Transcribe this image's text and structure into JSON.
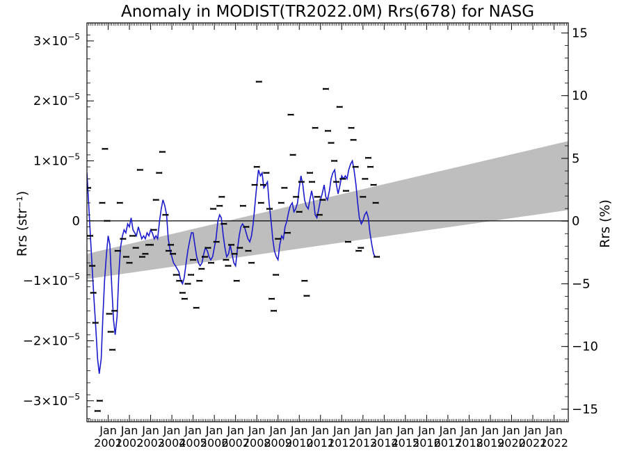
{
  "chart_data": {
    "type": "line",
    "title": "Anomaly in MODIST(TR2022.0M) Rrs(678) for NASG",
    "ylabel": "Rrs (str⁻¹)",
    "y2label": "Rrs (%)",
    "xlabel": "",
    "xlim": [
      2000.0,
      2022.67
    ],
    "ylim": [
      -3.35e-05,
      3.3e-05
    ],
    "y2lim": [
      -16.0,
      15.8
    ],
    "grid": false,
    "yticks": [
      {
        "value": 3e-05,
        "mantissa": "3",
        "exp": "−5"
      },
      {
        "value": 2e-05,
        "mantissa": "2",
        "exp": "−5"
      },
      {
        "value": 1e-05,
        "mantissa": "1",
        "exp": "−5"
      },
      {
        "value": 0,
        "label": "0"
      },
      {
        "value": -1e-05,
        "mantissa": "−1",
        "exp": "−5"
      },
      {
        "value": -2e-05,
        "mantissa": "−2",
        "exp": "−5"
      },
      {
        "value": -3e-05,
        "mantissa": "−3",
        "exp": "−5"
      }
    ],
    "y2ticks": [
      {
        "value": 15,
        "label": "15"
      },
      {
        "value": 10,
        "label": "10"
      },
      {
        "value": 5,
        "label": "5"
      },
      {
        "value": 0,
        "label": "0"
      },
      {
        "value": -5,
        "label": "−5"
      },
      {
        "value": -10,
        "label": "−10"
      },
      {
        "value": -15,
        "label": "−15"
      }
    ],
    "xticks": [
      {
        "value": 2001.0,
        "month": "Jan",
        "year": "2001"
      },
      {
        "value": 2002.0,
        "month": "Jan",
        "year": "2002"
      },
      {
        "value": 2003.0,
        "month": "Jan",
        "year": "2003"
      },
      {
        "value": 2004.0,
        "month": "Jan",
        "year": "2004"
      },
      {
        "value": 2005.0,
        "month": "Jan",
        "year": "2005"
      },
      {
        "value": 2006.0,
        "month": "Jan",
        "year": "2006"
      },
      {
        "value": 2007.0,
        "month": "Jan",
        "year": "2007"
      },
      {
        "value": 2008.0,
        "month": "Jan",
        "year": "2008"
      },
      {
        "value": 2009.0,
        "month": "Jan",
        "year": "2009"
      },
      {
        "value": 2010.0,
        "month": "Jan",
        "year": "2010"
      },
      {
        "value": 2011.0,
        "month": "Jan",
        "year": "2011"
      },
      {
        "value": 2012.0,
        "month": "Jan",
        "year": "2012"
      },
      {
        "value": 2013.0,
        "month": "Jan",
        "year": "2013"
      },
      {
        "value": 2014.0,
        "month": "Jan",
        "year": "2014"
      },
      {
        "value": 2015.0,
        "month": "Jan",
        "year": "2015"
      },
      {
        "value": 2016.0,
        "month": "Jan",
        "year": "2016"
      },
      {
        "value": 2017.0,
        "month": "Jan",
        "year": "2017"
      },
      {
        "value": 2018.0,
        "month": "Jan",
        "year": "2018"
      },
      {
        "value": 2019.0,
        "month": "Jan",
        "year": "2019"
      },
      {
        "value": 2020.0,
        "month": "Jan",
        "year": "2020"
      },
      {
        "value": 2021.0,
        "month": "Jan",
        "year": "2021"
      },
      {
        "value": 2022.0,
        "month": "Jan",
        "year": "2022"
      }
    ],
    "trend_band": {
      "color": "#bebebe",
      "upper": [
        [
          2000.0,
          -5.5e-06
        ],
        [
          2022.67,
          1.33e-05
        ]
      ],
      "lower": [
        [
          2000.0,
          -9.7e-06
        ],
        [
          2022.67,
          1.8e-06
        ]
      ]
    },
    "zero_line": 0,
    "series": [
      {
        "kind": "smoothed_line",
        "color": "#1a1acc",
        "points": [
          [
            2000.0,
            8e-06
          ],
          [
            2000.08,
            3e-06
          ],
          [
            2000.17,
            -3e-06
          ],
          [
            2000.25,
            -8e-06
          ],
          [
            2000.33,
            -1.3e-05
          ],
          [
            2000.42,
            -1.8e-05
          ],
          [
            2000.5,
            -2.3e-05
          ],
          [
            2000.58,
            -2.55e-05
          ],
          [
            2000.67,
            -2.3e-05
          ],
          [
            2000.75,
            -1.6e-05
          ],
          [
            2000.83,
            -1e-05
          ],
          [
            2000.92,
            -5.5e-06
          ],
          [
            2001.0,
            -2.5e-06
          ],
          [
            2001.08,
            -4e-06
          ],
          [
            2001.17,
            -1.1e-05
          ],
          [
            2001.25,
            -1.65e-05
          ],
          [
            2001.33,
            -1.9e-05
          ],
          [
            2001.42,
            -1.6e-05
          ],
          [
            2001.5,
            -9e-06
          ],
          [
            2001.58,
            -4.5e-06
          ],
          [
            2001.67,
            -2.5e-06
          ],
          [
            2001.75,
            -1.5e-06
          ],
          [
            2001.83,
            -2e-06
          ],
          [
            2001.92,
            -5e-07
          ],
          [
            2002.0,
            -1e-06
          ],
          [
            2002.08,
            5e-07
          ],
          [
            2002.17,
            -1.5e-06
          ],
          [
            2002.25,
            -2e-06
          ],
          [
            2002.33,
            -2.5e-06
          ],
          [
            2002.42,
            -1e-06
          ],
          [
            2002.5,
            -2e-06
          ],
          [
            2002.58,
            -3e-06
          ],
          [
            2002.67,
            -2.5e-06
          ],
          [
            2002.75,
            -3e-06
          ],
          [
            2002.83,
            -2e-06
          ],
          [
            2002.92,
            -2.5e-06
          ],
          [
            2003.0,
            -1.5e-06
          ],
          [
            2003.08,
            -2e-06
          ],
          [
            2003.17,
            -3e-06
          ],
          [
            2003.25,
            -2.5e-06
          ],
          [
            2003.33,
            -3e-06
          ],
          [
            2003.42,
            0.0
          ],
          [
            2003.5,
            2e-06
          ],
          [
            2003.58,
            3.5e-06
          ],
          [
            2003.67,
            2.5e-06
          ],
          [
            2003.75,
            1e-06
          ],
          [
            2003.83,
            -3e-06
          ],
          [
            2003.92,
            -5e-06
          ],
          [
            2004.0,
            -6e-06
          ],
          [
            2004.08,
            -7e-06
          ],
          [
            2004.17,
            -7.5e-06
          ],
          [
            2004.25,
            -8e-06
          ],
          [
            2004.33,
            -8.5e-06
          ],
          [
            2004.42,
            -1e-05
          ],
          [
            2004.5,
            -1.05e-05
          ],
          [
            2004.58,
            -9.5e-06
          ],
          [
            2004.67,
            -7e-06
          ],
          [
            2004.75,
            -5e-06
          ],
          [
            2004.83,
            -3.5e-06
          ],
          [
            2004.92,
            -2e-06
          ],
          [
            2005.0,
            -2e-06
          ],
          [
            2005.08,
            -4e-06
          ],
          [
            2005.17,
            -6e-06
          ],
          [
            2005.25,
            -7e-06
          ],
          [
            2005.33,
            -7.5e-06
          ],
          [
            2005.42,
            -7e-06
          ],
          [
            2005.5,
            -5.5e-06
          ],
          [
            2005.58,
            -4.5e-06
          ],
          [
            2005.67,
            -5e-06
          ],
          [
            2005.75,
            -6e-06
          ],
          [
            2005.83,
            -6.5e-06
          ],
          [
            2005.92,
            -6e-06
          ],
          [
            2006.0,
            -4.5e-06
          ],
          [
            2006.08,
            -3e-06
          ],
          [
            2006.17,
            0.0
          ],
          [
            2006.25,
            1e-06
          ],
          [
            2006.33,
            5e-07
          ],
          [
            2006.42,
            -2.5e-06
          ],
          [
            2006.5,
            -4.5e-06
          ],
          [
            2006.58,
            -6e-06
          ],
          [
            2006.67,
            -5.5e-06
          ],
          [
            2006.75,
            -4e-06
          ],
          [
            2006.83,
            -5.5e-06
          ],
          [
            2006.92,
            -7e-06
          ],
          [
            2007.0,
            -7.5e-06
          ],
          [
            2007.08,
            -5e-06
          ],
          [
            2007.17,
            -2.5e-06
          ],
          [
            2007.25,
            -1e-06
          ],
          [
            2007.33,
            -5e-07
          ],
          [
            2007.42,
            -1e-06
          ],
          [
            2007.5,
            -2e-06
          ],
          [
            2007.58,
            -3e-06
          ],
          [
            2007.67,
            -3.5e-06
          ],
          [
            2007.75,
            -2.5e-06
          ],
          [
            2007.83,
            -5e-07
          ],
          [
            2007.92,
            3e-06
          ],
          [
            2008.0,
            6e-06
          ],
          [
            2008.08,
            8.5e-06
          ],
          [
            2008.17,
            7.5e-06
          ],
          [
            2008.25,
            8e-06
          ],
          [
            2008.33,
            5.5e-06
          ],
          [
            2008.42,
            6e-06
          ],
          [
            2008.5,
            6.5e-06
          ],
          [
            2008.58,
            3e-06
          ],
          [
            2008.67,
            0.0
          ],
          [
            2008.75,
            -3e-06
          ],
          [
            2008.83,
            -5e-06
          ],
          [
            2008.92,
            -6e-06
          ],
          [
            2009.0,
            -6.5e-06
          ],
          [
            2009.08,
            -4e-06
          ],
          [
            2009.17,
            -2.5e-06
          ],
          [
            2009.25,
            -3e-06
          ],
          [
            2009.33,
            -1e-06
          ],
          [
            2009.42,
            0.0
          ],
          [
            2009.5,
            1.5e-06
          ],
          [
            2009.58,
            2.5e-06
          ],
          [
            2009.67,
            3e-06
          ],
          [
            2009.75,
            1.5e-06
          ],
          [
            2009.83,
            2e-06
          ],
          [
            2009.92,
            3e-06
          ],
          [
            2010.0,
            5.5e-06
          ],
          [
            2010.08,
            7.5e-06
          ],
          [
            2010.17,
            6e-06
          ],
          [
            2010.25,
            3.5e-06
          ],
          [
            2010.33,
            2.5e-06
          ],
          [
            2010.42,
            2e-06
          ],
          [
            2010.5,
            3.5e-06
          ],
          [
            2010.58,
            5e-06
          ],
          [
            2010.67,
            3.5e-06
          ],
          [
            2010.75,
            1e-06
          ],
          [
            2010.83,
            5e-07
          ],
          [
            2010.92,
            2e-06
          ],
          [
            2011.0,
            3.5e-06
          ],
          [
            2011.08,
            4.5e-06
          ],
          [
            2011.17,
            6e-06
          ],
          [
            2011.25,
            4e-06
          ],
          [
            2011.33,
            3.5e-06
          ],
          [
            2011.42,
            5e-06
          ],
          [
            2011.5,
            7e-06
          ],
          [
            2011.58,
            8e-06
          ],
          [
            2011.67,
            8.5e-06
          ],
          [
            2011.75,
            6e-06
          ],
          [
            2011.83,
            4.5e-06
          ],
          [
            2011.92,
            6e-06
          ],
          [
            2012.0,
            7.5e-06
          ],
          [
            2012.08,
            7e-06
          ],
          [
            2012.17,
            7.5e-06
          ],
          [
            2012.25,
            7e-06
          ],
          [
            2012.33,
            8.5e-06
          ],
          [
            2012.42,
            9.5e-06
          ],
          [
            2012.5,
            1e-05
          ],
          [
            2012.58,
            8.5e-06
          ],
          [
            2012.67,
            6e-06
          ],
          [
            2012.75,
            3e-06
          ],
          [
            2012.83,
            5e-07
          ],
          [
            2012.92,
            -5e-07
          ],
          [
            2013.0,
            0.0
          ],
          [
            2013.08,
            1e-06
          ],
          [
            2013.17,
            1.5e-06
          ],
          [
            2013.25,
            5e-07
          ],
          [
            2013.33,
            -2e-06
          ],
          [
            2013.42,
            -4e-06
          ],
          [
            2013.5,
            -5.5e-06
          ],
          [
            2013.58,
            -6e-06
          ]
        ]
      }
    ],
    "samples": [
      [
        2000.05,
        5.5e-06
      ],
      [
        2000.15,
        -2.5e-06
      ],
      [
        2000.25,
        -7.5e-06
      ],
      [
        2000.3,
        -1.2e-05
      ],
      [
        2000.4,
        -1.7e-05
      ],
      [
        2000.5,
        -3.17e-05
      ],
      [
        2000.6,
        -3e-05
      ],
      [
        2000.72,
        3e-06
      ],
      [
        2000.85,
        1.2e-05
      ],
      [
        2000.95,
        0.0
      ],
      [
        2001.05,
        -1.55e-05
      ],
      [
        2001.12,
        -1.85e-05
      ],
      [
        2001.2,
        -2.15e-05
      ],
      [
        2001.3,
        -1.5e-05
      ],
      [
        2001.45,
        -5e-06
      ],
      [
        2001.55,
        3e-06
      ],
      [
        2001.7,
        -3e-06
      ],
      [
        2001.85,
        -6e-06
      ],
      [
        2002.0,
        -7e-06
      ],
      [
        2002.15,
        -2.5e-06
      ],
      [
        2002.3,
        -4.5e-06
      ],
      [
        2002.5,
        8.5e-06
      ],
      [
        2002.6,
        -6e-06
      ],
      [
        2002.75,
        -5.5e-06
      ],
      [
        2002.9,
        -4e-06
      ],
      [
        2003.0,
        -4e-06
      ],
      [
        2003.15,
        -1.5e-06
      ],
      [
        2003.25,
        3.5e-06
      ],
      [
        2003.4,
        8e-06
      ],
      [
        2003.55,
        1.15e-05
      ],
      [
        2003.7,
        1e-06
      ],
      [
        2003.85,
        -5e-06
      ],
      [
        2003.95,
        -4e-06
      ],
      [
        2004.05,
        -5.5e-06
      ],
      [
        2004.2,
        -9e-06
      ],
      [
        2004.35,
        -1e-05
      ],
      [
        2004.5,
        -1.2e-05
      ],
      [
        2004.6,
        -1.3e-05
      ],
      [
        2004.75,
        -1.05e-05
      ],
      [
        2004.9,
        -9e-06
      ],
      [
        2005.0,
        -6.5e-06
      ],
      [
        2005.15,
        -1.45e-05
      ],
      [
        2005.3,
        -1e-05
      ],
      [
        2005.4,
        -8e-06
      ],
      [
        2005.55,
        -6e-06
      ],
      [
        2005.7,
        -4.5e-06
      ],
      [
        2005.85,
        -7e-06
      ],
      [
        2005.95,
        2e-06
      ],
      [
        2006.1,
        -3.5e-06
      ],
      [
        2006.25,
        2.5e-06
      ],
      [
        2006.35,
        4e-06
      ],
      [
        2006.45,
        -5e-07
      ],
      [
        2006.55,
        -6.5e-06
      ],
      [
        2006.65,
        -7.5e-06
      ],
      [
        2006.8,
        -4e-06
      ],
      [
        2006.95,
        -5.5e-06
      ],
      [
        2007.05,
        -1e-05
      ],
      [
        2007.2,
        -4.5e-06
      ],
      [
        2007.35,
        2.5e-06
      ],
      [
        2007.5,
        -1e-06
      ],
      [
        2007.6,
        -5e-06
      ],
      [
        2007.75,
        -7e-06
      ],
      [
        2007.9,
        6e-06
      ],
      [
        2008.0,
        9e-06
      ],
      [
        2008.1,
        2.32e-05
      ],
      [
        2008.2,
        3e-06
      ],
      [
        2008.3,
        6e-06
      ],
      [
        2008.45,
        8e-06
      ],
      [
        2008.6,
        2e-06
      ],
      [
        2008.7,
        -1.3e-05
      ],
      [
        2008.8,
        -1.5e-05
      ],
      [
        2008.9,
        -9e-06
      ],
      [
        2009.0,
        -3e-06
      ],
      [
        2009.15,
        3e-06
      ],
      [
        2009.3,
        5.5e-06
      ],
      [
        2009.45,
        -2e-06
      ],
      [
        2009.6,
        1.77e-05
      ],
      [
        2009.7,
        1.1e-05
      ],
      [
        2009.85,
        4e-06
      ],
      [
        2010.0,
        1.5e-06
      ],
      [
        2010.1,
        6.5e-06
      ],
      [
        2010.25,
        -1e-05
      ],
      [
        2010.35,
        -1.25e-05
      ],
      [
        2010.5,
        8e-06
      ],
      [
        2010.6,
        6.5e-06
      ],
      [
        2010.75,
        1.55e-05
      ],
      [
        2010.85,
        4e-06
      ],
      [
        2010.95,
        1e-06
      ],
      [
        2011.1,
        3.5e-06
      ],
      [
        2011.25,
        2.2e-05
      ],
      [
        2011.35,
        1.5e-05
      ],
      [
        2011.5,
        1.3e-05
      ],
      [
        2011.65,
        1e-05
      ],
      [
        2011.75,
        6.5e-06
      ],
      [
        2011.9,
        1.9e-05
      ],
      [
        2012.05,
        7e-06
      ],
      [
        2012.2,
        5e-06
      ],
      [
        2012.3,
        -3.5e-06
      ],
      [
        2012.45,
        1.55e-05
      ],
      [
        2012.55,
        1.35e-05
      ],
      [
        2012.65,
        9e-06
      ],
      [
        2012.8,
        -5e-06
      ],
      [
        2012.9,
        -4.5e-06
      ],
      [
        2013.0,
        4e-06
      ],
      [
        2013.1,
        7e-06
      ],
      [
        2013.25,
        1.05e-05
      ],
      [
        2013.35,
        9e-06
      ],
      [
        2013.5,
        6e-06
      ],
      [
        2013.6,
        3e-06
      ],
      [
        2013.65,
        -6e-06
      ]
    ]
  }
}
